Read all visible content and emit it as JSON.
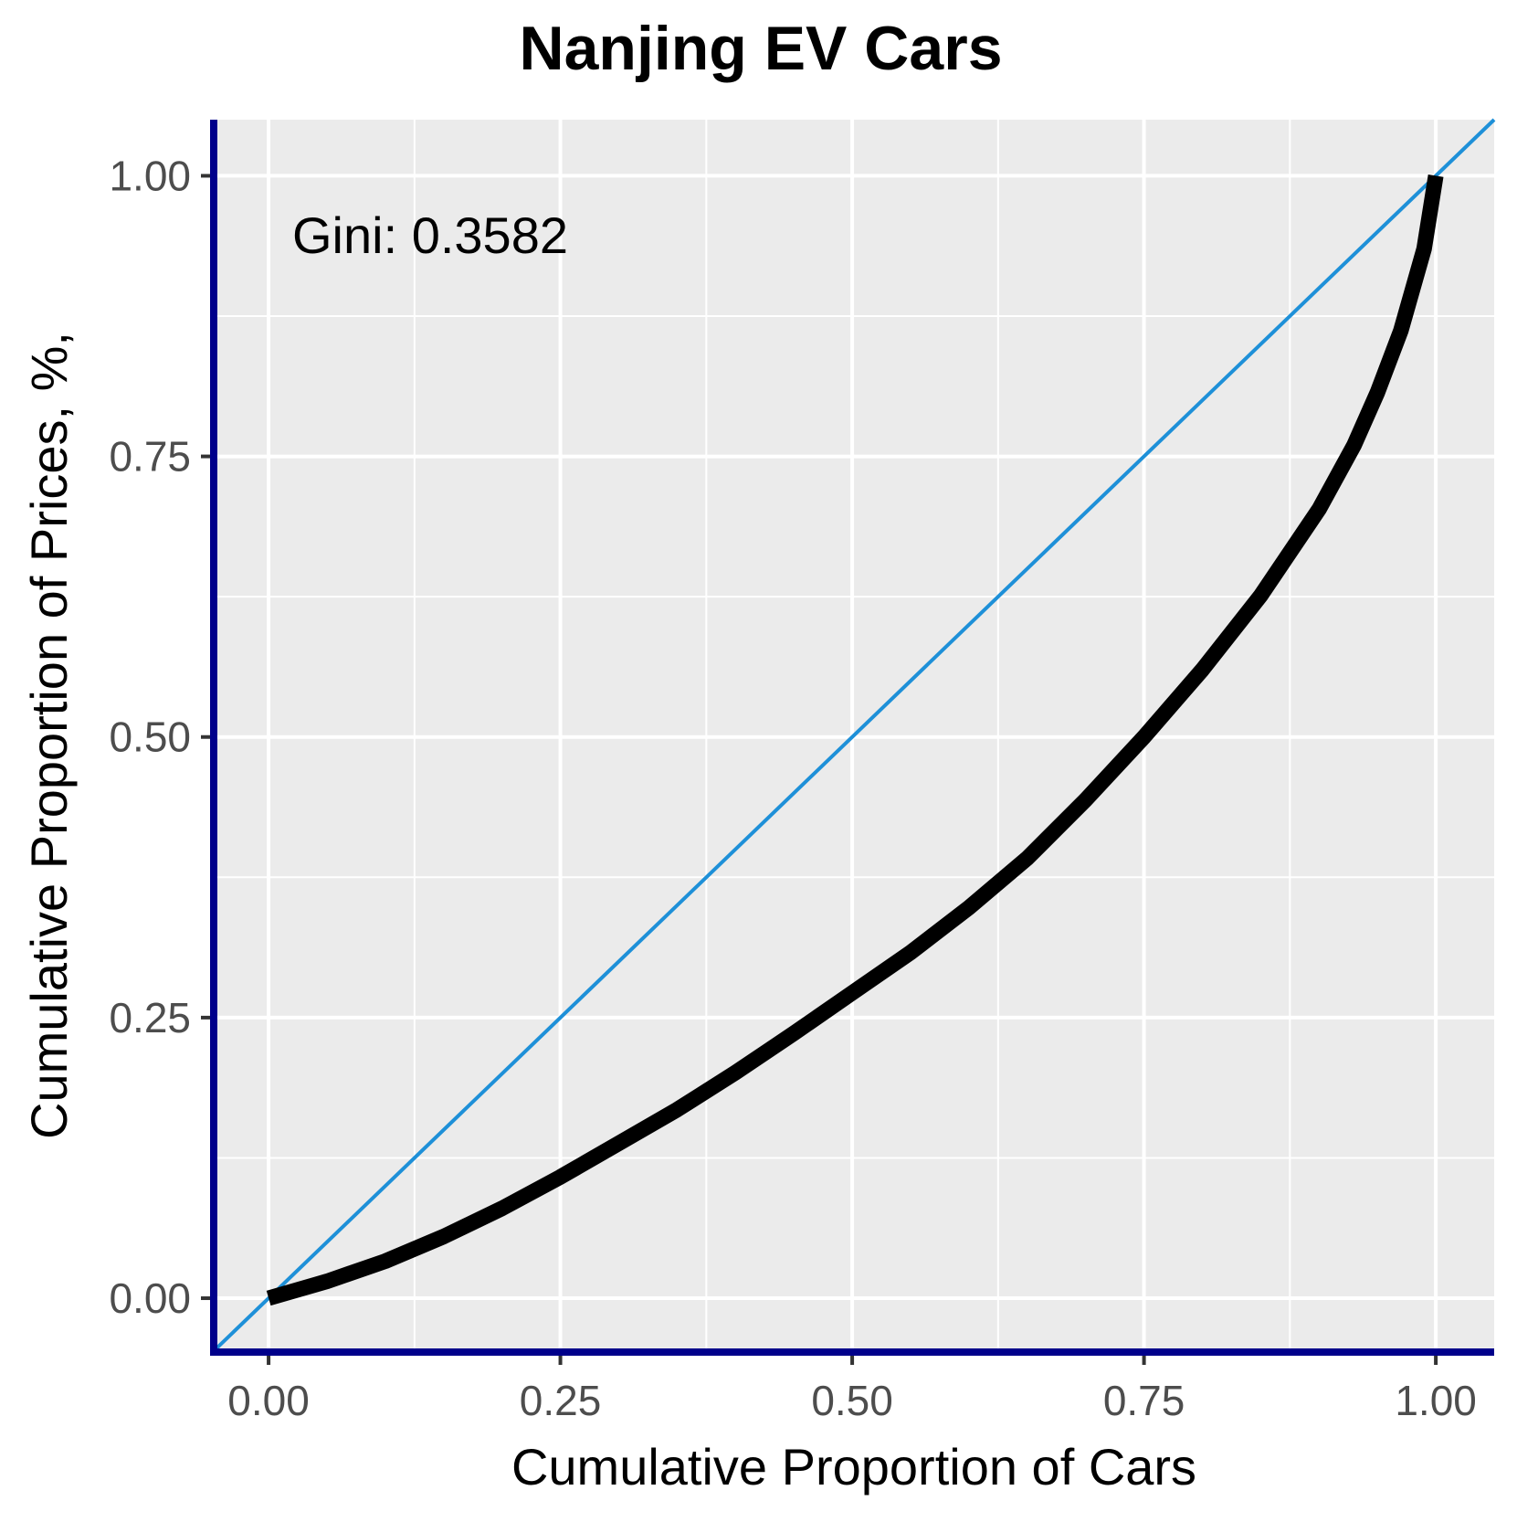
{
  "chart_data": {
    "type": "line",
    "title": "Nanjing EV Cars",
    "xlabel": "Cumulative Proportion of Cars",
    "ylabel": "Cumulative Proportion of Prices, %,",
    "annotation": "Gini: 0.3582",
    "xlim": [
      -0.047,
      1.05
    ],
    "ylim": [
      -0.048,
      1.05
    ],
    "x_ticks": [
      0.0,
      0.25,
      0.5,
      0.75,
      1.0
    ],
    "x_tick_labels": [
      "0.00",
      "0.25",
      "0.50",
      "0.75",
      "1.00"
    ],
    "y_ticks": [
      0.0,
      0.25,
      0.5,
      0.75,
      1.0
    ],
    "y_tick_labels": [
      "0.00",
      "0.25",
      "0.50",
      "0.75",
      "1.00"
    ],
    "grid": true,
    "series": [
      {
        "role": "lorenz-curve",
        "color": "#000000",
        "x": [
          0.0,
          0.05,
          0.1,
          0.15,
          0.2,
          0.25,
          0.3,
          0.35,
          0.4,
          0.45,
          0.5,
          0.55,
          0.6,
          0.65,
          0.7,
          0.75,
          0.8,
          0.85,
          0.9,
          0.93,
          0.95,
          0.97,
          0.99,
          1.0
        ],
        "y": [
          0.0,
          0.015,
          0.033,
          0.055,
          0.08,
          0.108,
          0.138,
          0.168,
          0.201,
          0.236,
          0.272,
          0.308,
          0.348,
          0.392,
          0.444,
          0.5,
          0.56,
          0.626,
          0.703,
          0.76,
          0.807,
          0.862,
          0.935,
          1.0
        ]
      },
      {
        "role": "line-of-equality",
        "color": "#1e90d8",
        "x": [
          -0.047,
          1.05
        ],
        "y": [
          -0.047,
          1.05
        ]
      }
    ],
    "colors": {
      "panel_background": "#ebebeb",
      "grid": "#ffffff",
      "axis_lines": "#00008b",
      "tick_labels": "#4d4d4d",
      "text": "#000000"
    }
  }
}
